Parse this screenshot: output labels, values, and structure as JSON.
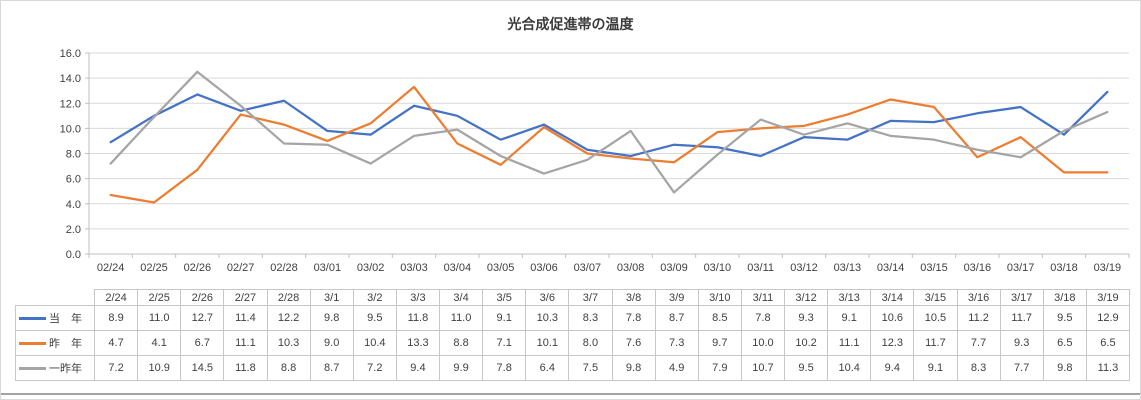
{
  "chart_data": {
    "type": "line",
    "title": "光合成促進帯の温度",
    "categories": [
      "2/24",
      "2/25",
      "2/26",
      "2/27",
      "2/28",
      "3/1",
      "3/2",
      "3/3",
      "3/4",
      "3/5",
      "3/6",
      "3/7",
      "3/8",
      "3/9",
      "3/10",
      "3/11",
      "3/12",
      "3/13",
      "3/14",
      "3/15",
      "3/16",
      "3/17",
      "3/18",
      "3/19"
    ],
    "x_axis_labels": [
      "02/24",
      "02/25",
      "02/26",
      "02/27",
      "02/28",
      "03/01",
      "03/02",
      "03/03",
      "03/04",
      "03/05",
      "03/06",
      "03/07",
      "03/08",
      "03/09",
      "03/10",
      "03/11",
      "03/12",
      "03/13",
      "03/14",
      "03/15",
      "03/16",
      "03/17",
      "03/18",
      "03/19"
    ],
    "y_tick_labels": [
      "0.0",
      "2.0",
      "4.0",
      "6.0",
      "8.0",
      "10.0",
      "12.0",
      "14.0",
      "16.0"
    ],
    "ylim": [
      0,
      16
    ],
    "y_step": 2,
    "grid": true,
    "legend_position": "data-table-left",
    "series": [
      {
        "name": "当　年",
        "color": "#4472C4",
        "values": [
          8.9,
          11.0,
          12.7,
          11.4,
          12.2,
          9.8,
          9.5,
          11.8,
          11.0,
          9.1,
          10.3,
          8.3,
          7.8,
          8.7,
          8.5,
          7.8,
          9.3,
          9.1,
          10.6,
          10.5,
          11.2,
          11.7,
          9.5,
          12.9
        ]
      },
      {
        "name": "昨　年",
        "color": "#ED7D31",
        "values": [
          4.7,
          4.1,
          6.7,
          11.1,
          10.3,
          9.0,
          10.4,
          13.3,
          8.8,
          7.1,
          10.1,
          8.0,
          7.6,
          7.3,
          9.7,
          10.0,
          10.2,
          11.1,
          12.3,
          11.7,
          7.7,
          9.3,
          6.5,
          6.5
        ]
      },
      {
        "name": "一昨年",
        "color": "#A5A5A5",
        "values": [
          7.2,
          10.9,
          14.5,
          11.8,
          8.8,
          8.7,
          7.2,
          9.4,
          9.9,
          7.8,
          6.4,
          7.5,
          9.8,
          4.9,
          7.9,
          10.7,
          9.5,
          10.4,
          9.4,
          9.1,
          8.3,
          7.7,
          9.8,
          11.3
        ]
      }
    ],
    "colors": {
      "gridline": "#D9D9D9",
      "axis": "#BFBFBF",
      "text": "#404040",
      "table_border": "#C6C6C6",
      "bottom_rule": "#A3A3A3"
    }
  }
}
